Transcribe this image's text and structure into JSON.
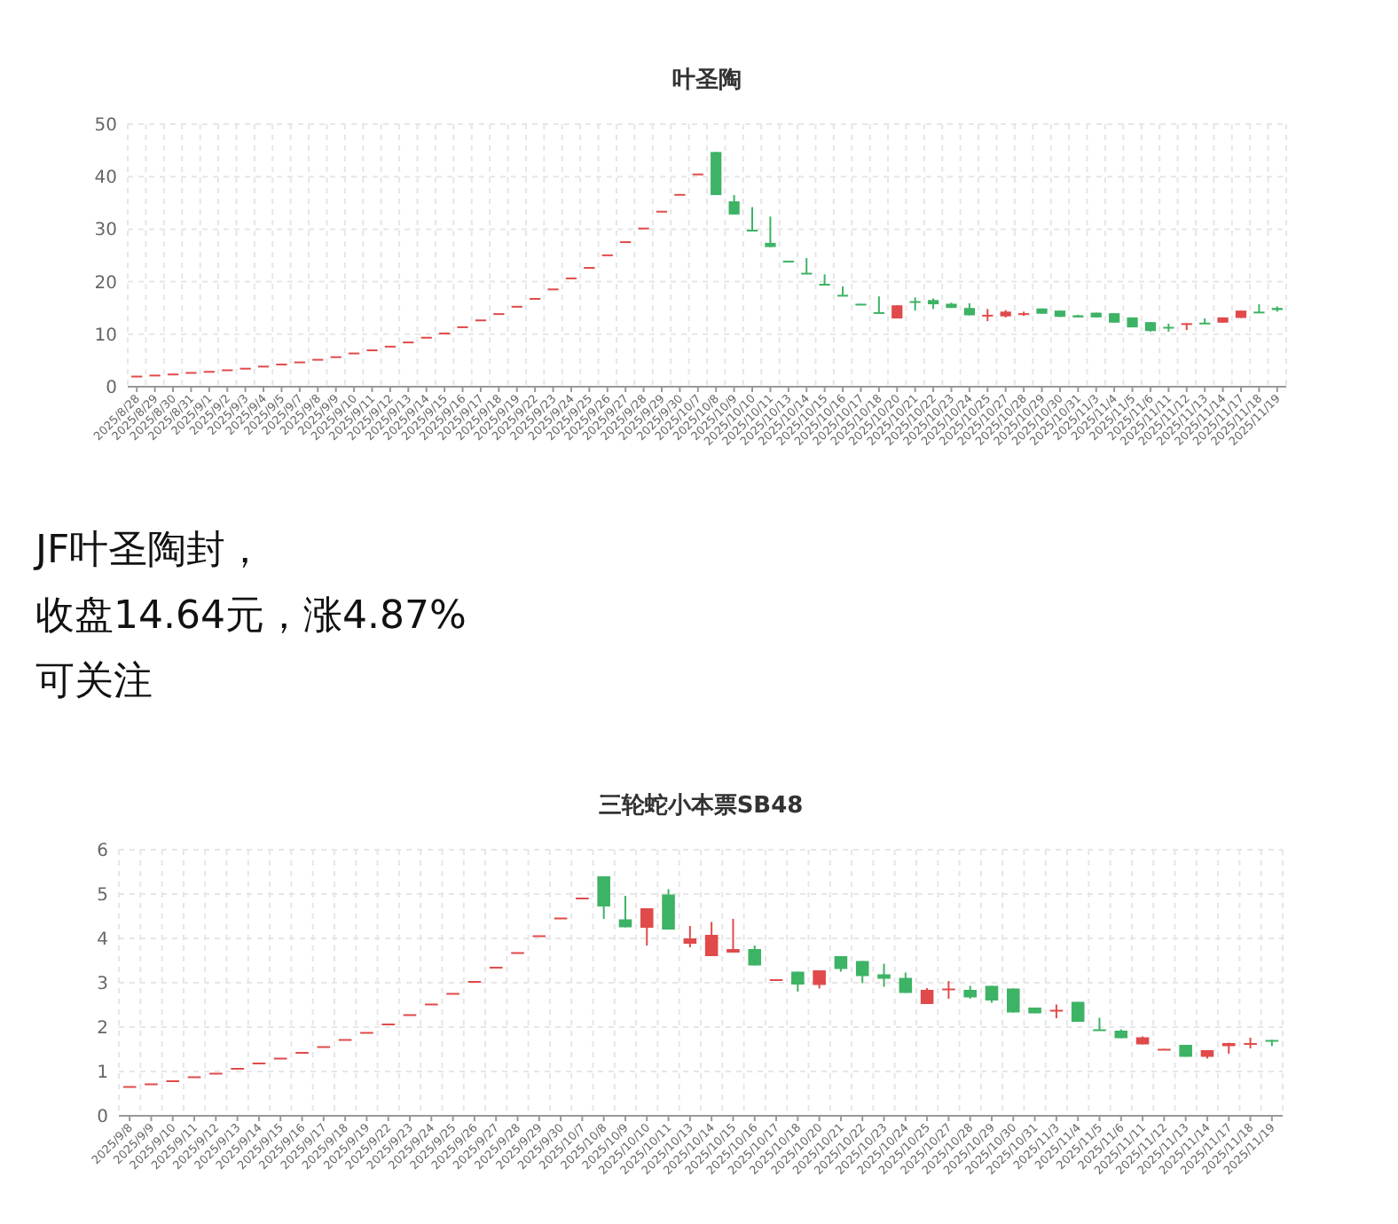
{
  "chart_data": [
    {
      "type": "candlestick",
      "title": "叶圣陶",
      "ylim": [
        0,
        50
      ],
      "yticks": [
        0,
        10,
        20,
        30,
        40,
        50
      ],
      "grid": true,
      "categories": [
        "2025/8/28",
        "2025/8/29",
        "2025/8/30",
        "2025/8/31",
        "2025/9/1",
        "2025/9/2",
        "2025/9/3",
        "2025/9/4",
        "2025/9/5",
        "2025/9/7",
        "2025/9/8",
        "2025/9/9",
        "2025/9/10",
        "2025/9/11",
        "2025/9/12",
        "2025/9/13",
        "2025/9/14",
        "2025/9/15",
        "2025/9/16",
        "2025/9/17",
        "2025/9/18",
        "2025/9/19",
        "2025/9/22",
        "2025/9/23",
        "2025/9/24",
        "2025/9/25",
        "2025/9/26",
        "2025/9/27",
        "2025/9/28",
        "2025/9/29",
        "2025/9/30",
        "2025/10/7",
        "2025/10/8",
        "2025/10/9",
        "2025/10/10",
        "2025/10/11",
        "2025/10/13",
        "2025/10/14",
        "2025/10/15",
        "2025/10/16",
        "2025/10/17",
        "2025/10/18",
        "2025/10/20",
        "2025/10/21",
        "2025/10/22",
        "2025/10/23",
        "2025/10/24",
        "2025/10/25",
        "2025/10/27",
        "2025/10/28",
        "2025/10/29",
        "2025/10/30",
        "2025/10/31",
        "2025/11/3",
        "2025/11/4",
        "2025/11/5",
        "2025/11/6",
        "2025/11/11",
        "2025/11/12",
        "2025/11/13",
        "2025/11/14",
        "2025/11/17",
        "2025/11/18",
        "2025/11/19"
      ],
      "ohlc": [
        [
          2.1,
          2.1,
          2.1,
          2.1
        ],
        [
          2.3,
          2.3,
          2.3,
          2.3
        ],
        [
          2.5,
          2.5,
          2.5,
          2.5
        ],
        [
          2.8,
          2.8,
          2.8,
          2.8
        ],
        [
          3.0,
          3.0,
          3.0,
          3.0
        ],
        [
          3.3,
          3.3,
          3.3,
          3.3
        ],
        [
          3.6,
          3.6,
          3.6,
          3.6
        ],
        [
          4.0,
          4.0,
          4.0,
          4.0
        ],
        [
          4.4,
          4.4,
          4.4,
          4.4
        ],
        [
          4.8,
          4.8,
          4.8,
          4.8
        ],
        [
          5.3,
          5.3,
          5.3,
          5.3
        ],
        [
          5.8,
          5.8,
          5.8,
          5.8
        ],
        [
          6.5,
          6.5,
          6.5,
          6.5
        ],
        [
          7.1,
          7.1,
          7.1,
          7.1
        ],
        [
          7.8,
          7.8,
          7.8,
          7.8
        ],
        [
          8.6,
          8.6,
          8.6,
          8.6
        ],
        [
          9.5,
          9.5,
          9.5,
          9.5
        ],
        [
          10.3,
          10.3,
          10.3,
          10.3
        ],
        [
          11.5,
          11.5,
          11.5,
          11.5
        ],
        [
          12.8,
          12.8,
          12.8,
          12.8
        ],
        [
          14,
          14,
          14,
          14
        ],
        [
          15.4,
          15.4,
          15.4,
          15.4
        ],
        [
          16.9,
          16.9,
          16.9,
          16.9
        ],
        [
          18.7,
          18.7,
          18.7,
          18.7
        ],
        [
          20.8,
          20.8,
          20.8,
          20.8
        ],
        [
          22.8,
          22.8,
          22.8,
          22.8
        ],
        [
          25.2,
          25.2,
          25.2,
          25.2
        ],
        [
          27.7,
          27.7,
          27.7,
          27.7
        ],
        [
          30.3,
          30.3,
          30.3,
          30.3
        ],
        [
          33.5,
          33.5,
          33.5,
          33.5
        ],
        [
          36.7,
          36.7,
          36.7,
          36.7
        ],
        [
          40.6,
          40.6,
          40.6,
          40.6
        ],
        [
          44.7,
          44.7,
          36.5,
          36.5
        ],
        [
          35.3,
          36.5,
          32.8,
          32.8
        ],
        [
          29.9,
          34.2,
          29.6,
          29.6
        ],
        [
          27.4,
          32.4,
          26.6,
          26.6
        ],
        [
          24.0,
          24.0,
          23.9,
          23.9
        ],
        [
          21.7,
          24.5,
          21.5,
          21.5
        ],
        [
          19.6,
          21.4,
          19.4,
          19.4
        ],
        [
          17.5,
          19.1,
          17.3,
          17.3
        ],
        [
          15.8,
          15.8,
          15.7,
          15.7
        ],
        [
          14.2,
          17.2,
          14.0,
          14.0
        ],
        [
          13.0,
          15.5,
          13.0,
          15.5
        ],
        [
          16.3,
          17.0,
          14.5,
          16.1
        ],
        [
          16.5,
          16.8,
          14.8,
          15.7
        ],
        [
          15.8,
          16.0,
          15.0,
          15.0
        ],
        [
          15.0,
          15.9,
          13.6,
          13.6
        ],
        [
          13.5,
          14.8,
          12.5,
          13.7
        ],
        [
          13.4,
          14.6,
          13.2,
          14.3
        ],
        [
          13.7,
          14.3,
          13.5,
          14.0
        ],
        [
          14.9,
          14.9,
          13.9,
          13.9
        ],
        [
          14.5,
          14.5,
          13.3,
          13.3
        ],
        [
          13.6,
          13.7,
          13.2,
          13.2
        ],
        [
          14.1,
          14.1,
          13.2,
          13.2
        ],
        [
          14.0,
          14.0,
          12.2,
          12.2
        ],
        [
          13.2,
          13.2,
          11.3,
          11.3
        ],
        [
          12.3,
          12.3,
          10.5,
          10.6
        ],
        [
          11.4,
          12.0,
          10.5,
          11.3
        ],
        [
          11.9,
          12.1,
          10.8,
          12.1
        ],
        [
          12.2,
          13.0,
          12.0,
          12.0
        ],
        [
          12.2,
          13.2,
          12.2,
          13.2
        ],
        [
          13.1,
          14.5,
          13.1,
          14.5
        ],
        [
          14.3,
          15.7,
          14.0,
          14.0
        ],
        [
          15.0,
          15.3,
          14.3,
          14.6
        ]
      ]
    },
    {
      "type": "other",
      "annotations": [
        "JF叶圣陶封，",
        "收盘14.64元，涨4.87%",
        "可关注"
      ]
    },
    {
      "type": "candlestick",
      "title": "三轮蛇小本票SB48",
      "ylim": [
        0,
        6
      ],
      "yticks": [
        0,
        1,
        2,
        3,
        4,
        5,
        6
      ],
      "grid": true,
      "categories": [
        "2025/9/8",
        "2025/9/9",
        "2025/9/10",
        "2025/9/11",
        "2025/9/12",
        "2025/9/13",
        "2025/9/14",
        "2025/9/15",
        "2025/9/16",
        "2025/9/17",
        "2025/9/18",
        "2025/9/19",
        "2025/9/22",
        "2025/9/23",
        "2025/9/24",
        "2025/9/25",
        "2025/9/26",
        "2025/9/27",
        "2025/9/28",
        "2025/9/29",
        "2025/9/30",
        "2025/10/7",
        "2025/10/8",
        "2025/10/9",
        "2025/10/10",
        "2025/10/11",
        "2025/10/13",
        "2025/10/14",
        "2025/10/15",
        "2025/10/16",
        "2025/10/17",
        "2025/10/18",
        "2025/10/20",
        "2025/10/21",
        "2025/10/22",
        "2025/10/23",
        "2025/10/24",
        "2025/10/25",
        "2025/10/27",
        "2025/10/28",
        "2025/10/29",
        "2025/10/30",
        "2025/10/31",
        "2025/11/3",
        "2025/11/4",
        "2025/11/5",
        "2025/11/6",
        "2025/11/11",
        "2025/11/12",
        "2025/11/13",
        "2025/11/14",
        "2025/11/17",
        "2025/11/18",
        "2025/11/19"
      ],
      "ohlc": [
        [
          0.67,
          0.67,
          0.67,
          0.67
        ],
        [
          0.73,
          0.73,
          0.73,
          0.73
        ],
        [
          0.8,
          0.8,
          0.8,
          0.8
        ],
        [
          0.89,
          0.89,
          0.89,
          0.89
        ],
        [
          0.97,
          0.97,
          0.97,
          0.97
        ],
        [
          1.08,
          1.08,
          1.08,
          1.08
        ],
        [
          1.2,
          1.2,
          1.2,
          1.2
        ],
        [
          1.31,
          1.31,
          1.31,
          1.31
        ],
        [
          1.44,
          1.44,
          1.44,
          1.44
        ],
        [
          1.57,
          1.57,
          1.57,
          1.57
        ],
        [
          1.73,
          1.73,
          1.73,
          1.73
        ],
        [
          1.89,
          1.89,
          1.89,
          1.89
        ],
        [
          2.08,
          2.08,
          2.08,
          2.08
        ],
        [
          2.29,
          2.29,
          2.29,
          2.29
        ],
        [
          2.53,
          2.53,
          2.53,
          2.53
        ],
        [
          2.77,
          2.77,
          2.77,
          2.77
        ],
        [
          3.04,
          3.04,
          3.04,
          3.04
        ],
        [
          3.36,
          3.36,
          3.36,
          3.36
        ],
        [
          3.69,
          3.69,
          3.69,
          3.69
        ],
        [
          4.07,
          4.07,
          4.07,
          4.07
        ],
        [
          4.47,
          4.47,
          4.47,
          4.47
        ],
        [
          4.92,
          4.92,
          4.92,
          4.92
        ],
        [
          5.4,
          5.4,
          4.44,
          4.72
        ],
        [
          4.43,
          4.96,
          4.25,
          4.25
        ],
        [
          4.24,
          4.68,
          3.84,
          4.68
        ],
        [
          4.99,
          5.11,
          4.2,
          4.2
        ],
        [
          3.88,
          4.28,
          3.8,
          4.0
        ],
        [
          3.6,
          4.37,
          3.6,
          4.08
        ],
        [
          3.68,
          4.44,
          3.68,
          3.76
        ],
        [
          3.76,
          3.84,
          3.39,
          3.39
        ],
        [
          3.06,
          3.08,
          3.06,
          3.08
        ],
        [
          3.25,
          3.25,
          2.8,
          2.96
        ],
        [
          2.95,
          3.28,
          2.87,
          3.28
        ],
        [
          3.6,
          3.6,
          3.25,
          3.31
        ],
        [
          3.49,
          3.49,
          2.99,
          3.15
        ],
        [
          3.19,
          3.43,
          2.91,
          3.09
        ],
        [
          3.11,
          3.23,
          2.77,
          2.77
        ],
        [
          2.52,
          2.88,
          2.52,
          2.84
        ],
        [
          2.83,
          3.04,
          2.64,
          2.87
        ],
        [
          2.84,
          2.93,
          2.64,
          2.67
        ],
        [
          2.93,
          2.93,
          2.55,
          2.6
        ],
        [
          2.87,
          2.87,
          2.33,
          2.33
        ],
        [
          2.44,
          2.44,
          2.31,
          2.31
        ],
        [
          2.35,
          2.51,
          2.2,
          2.39
        ],
        [
          2.57,
          2.57,
          2.12,
          2.12
        ],
        [
          1.95,
          2.21,
          1.93,
          1.93
        ],
        [
          1.92,
          1.95,
          1.75,
          1.75
        ],
        [
          1.61,
          1.79,
          1.61,
          1.77
        ],
        [
          1.49,
          1.51,
          1.49,
          1.51
        ],
        [
          1.6,
          1.6,
          1.33,
          1.33
        ],
        [
          1.33,
          1.48,
          1.29,
          1.48
        ],
        [
          1.57,
          1.65,
          1.4,
          1.64
        ],
        [
          1.62,
          1.76,
          1.52,
          1.64
        ],
        [
          1.71,
          1.71,
          1.57,
          1.68
        ]
      ]
    }
  ]
}
